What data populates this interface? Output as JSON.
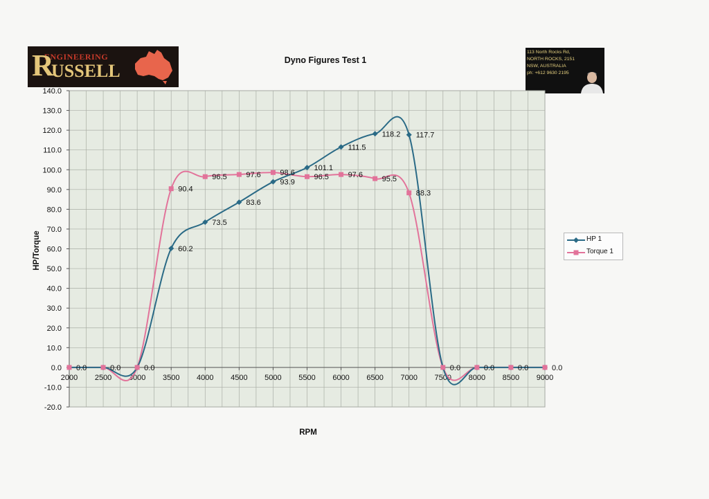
{
  "logo": {
    "brand_line1": "ENGINEERING",
    "brand_initial": "R",
    "brand_rest": "USSELL"
  },
  "contact": {
    "lines": [
      "113 North Rocks Rd,",
      "NORTH ROCKS, 2151",
      "NSW, AUSTRALIA",
      "ph: +612 9630 2195"
    ]
  },
  "chart_data": {
    "type": "line",
    "title": "Dyno Figures Test 1",
    "xlabel": "RPM",
    "ylabel": "HP/Torque",
    "x": [
      2000,
      2500,
      3000,
      3500,
      4000,
      4500,
      5000,
      5500,
      6000,
      6500,
      7000,
      7500,
      8000,
      8500,
      9000
    ],
    "xticks": [
      "2000",
      "2500",
      "3000",
      "3500",
      "4000",
      "4500",
      "5000",
      "5500",
      "6000",
      "6500",
      "7000",
      "7500",
      "8000",
      "8500",
      "9000"
    ],
    "ylim": [
      -20,
      140
    ],
    "yticks": [
      "140.0",
      "130.0",
      "120.0",
      "110.0",
      "100.0",
      "90.0",
      "80.0",
      "70.0",
      "60.0",
      "50.0",
      "40.0",
      "30.0",
      "20.0",
      "10.0",
      "0.0",
      "-10.0",
      "-20.0"
    ],
    "grid": true,
    "legend_position": "right",
    "series": [
      {
        "name": "HP 1",
        "color": "#2a6a86",
        "marker": "diamond",
        "values": [
          0,
          0,
          0,
          60.2,
          73.5,
          83.6,
          93.9,
          101.1,
          111.5,
          118.2,
          117.7,
          0,
          0,
          0,
          0
        ],
        "labels": [
          "",
          "",
          "",
          "60.2",
          "73.5",
          "83.6",
          "93.9",
          "101.1",
          "111.5",
          "118.2",
          "117.7",
          "",
          "",
          "",
          ""
        ]
      },
      {
        "name": "Torque  1",
        "color": "#e2739a",
        "marker": "square",
        "values": [
          0,
          0,
          0,
          90.4,
          96.5,
          97.6,
          98.6,
          96.5,
          97.6,
          95.5,
          88.3,
          0,
          0,
          0,
          0
        ],
        "labels": [
          "0.0",
          "0.0",
          "0.0",
          "90.4",
          "96.5",
          "97.6",
          "98.6",
          "96.5",
          "97.6",
          "95.5",
          "88.3",
          "0.0",
          "0.0",
          "0.0",
          "0.0"
        ]
      }
    ]
  }
}
